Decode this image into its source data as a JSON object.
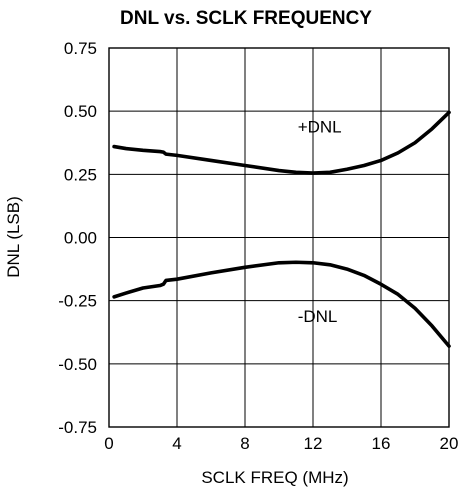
{
  "chart_data": {
    "type": "line",
    "title": "DNL vs. SCLK FREQUENCY",
    "xlabel": "SCLK FREQ (MHz)",
    "ylabel": "DNL (LSB)",
    "xlim": [
      0,
      20
    ],
    "ylim": [
      -0.75,
      0.75
    ],
    "x_ticks": [
      0,
      4,
      8,
      12,
      16,
      20
    ],
    "x_tick_labels": [
      "0",
      "4",
      "8",
      "12",
      "16",
      "20"
    ],
    "y_ticks": [
      0.75,
      0.5,
      0.25,
      0.0,
      -0.25,
      -0.5,
      -0.75
    ],
    "y_tick_labels": [
      "0.75",
      "0.50",
      "0.25",
      "0.00",
      "-0.25",
      "-0.50",
      "-0.75"
    ],
    "grid": true,
    "series": [
      {
        "name": "+DNL",
        "x": [
          0.3,
          1,
          2,
          3,
          3.2,
          3.35,
          4,
          6,
          8,
          10,
          11,
          12,
          13,
          14,
          15,
          16,
          17,
          18,
          19,
          20
        ],
        "y": [
          0.36,
          0.352,
          0.345,
          0.34,
          0.338,
          0.33,
          0.325,
          0.305,
          0.285,
          0.265,
          0.258,
          0.255,
          0.258,
          0.27,
          0.285,
          0.305,
          0.335,
          0.375,
          0.43,
          0.495
        ]
      },
      {
        "name": "-DNL",
        "x": [
          0.3,
          1,
          2,
          3,
          3.2,
          3.35,
          4,
          6,
          8,
          10,
          11,
          12,
          13,
          14,
          15,
          16,
          17,
          18,
          19,
          20
        ],
        "y": [
          -0.235,
          -0.22,
          -0.2,
          -0.19,
          -0.185,
          -0.17,
          -0.165,
          -0.14,
          -0.118,
          -0.1,
          -0.098,
          -0.1,
          -0.108,
          -0.125,
          -0.15,
          -0.185,
          -0.225,
          -0.28,
          -0.35,
          -0.43
        ]
      }
    ],
    "annotations": [
      {
        "text": "+DNL",
        "x": 11.1,
        "y": 0.415
      },
      {
        "text": "-DNL",
        "x": 11.1,
        "y": -0.335
      }
    ]
  }
}
